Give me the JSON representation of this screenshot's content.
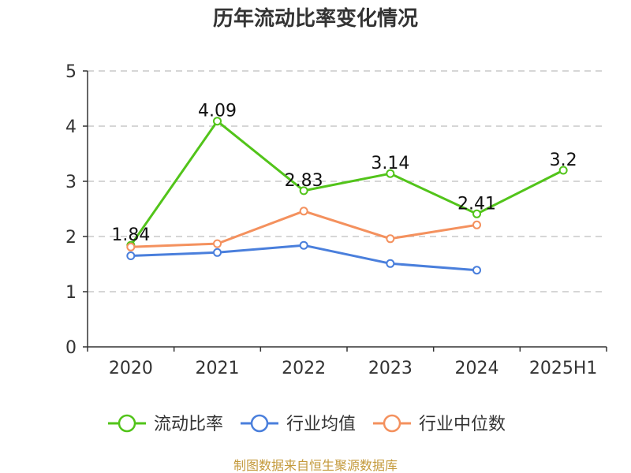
{
  "chart_data": {
    "type": "line",
    "title": "历年流动比率变化情况",
    "categories": [
      "2020",
      "2021",
      "2022",
      "2023",
      "2024",
      "2025H1"
    ],
    "ylim": [
      0,
      5
    ],
    "yticks": [
      0,
      1,
      2,
      3,
      4,
      5
    ],
    "grid": "horizontal-dashed",
    "legend_position": "bottom",
    "series": [
      {
        "name": "流动比率",
        "color": "#52c41a",
        "values": [
          1.84,
          4.09,
          2.83,
          3.14,
          2.41,
          3.2
        ],
        "labels": [
          "1.84",
          "4.09",
          "2.83",
          "3.14",
          "2.41",
          "3.2"
        ]
      },
      {
        "name": "行业均值",
        "color": "#4a7fdc",
        "values": [
          1.65,
          1.71,
          1.84,
          1.51,
          1.39,
          null
        ]
      },
      {
        "name": "行业中位数",
        "color": "#f4915e",
        "values": [
          1.81,
          1.87,
          2.46,
          1.96,
          2.21,
          null
        ]
      }
    ],
    "source": "制图数据来自恒生聚源数据库"
  }
}
